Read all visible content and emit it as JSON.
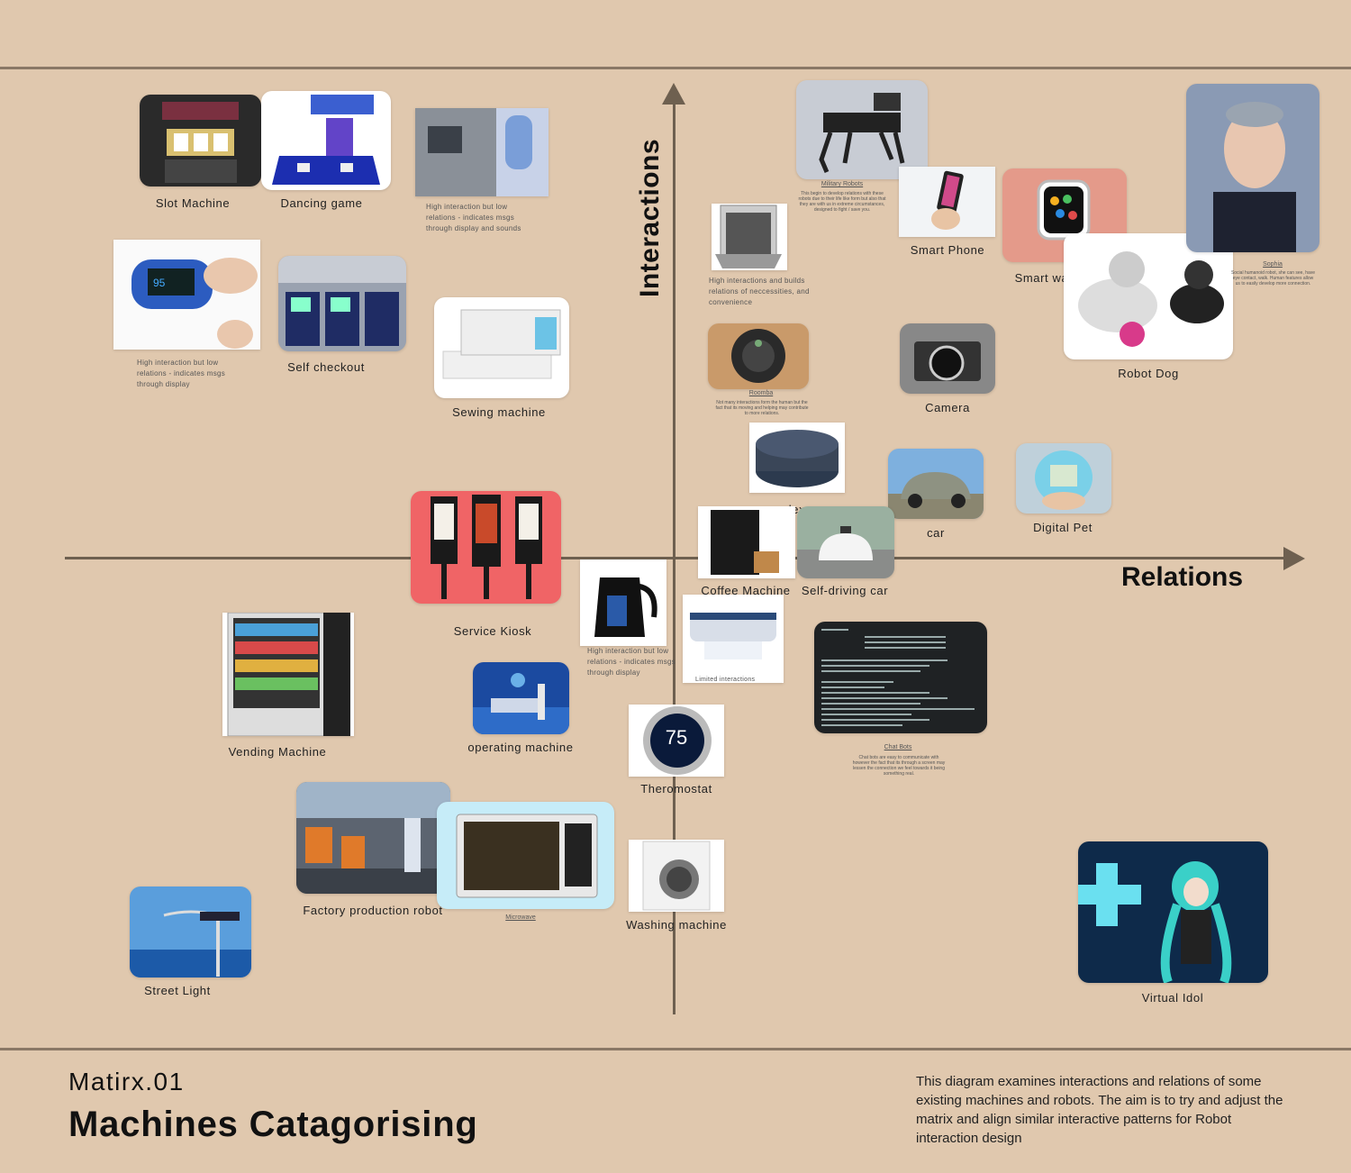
{
  "axes": {
    "y_label": "Interactions",
    "x_label": "Relations"
  },
  "items": {
    "slot_machine": "Slot Machine",
    "dancing_game": "Dancing game",
    "atm_note": "High interaction but low relations - indicates msgs through display and sounds",
    "oximeter_note": "High interaction but low relations - indicates msgs through display",
    "self_checkout": "Self checkout",
    "sewing_machine": "Sewing machine",
    "service_kiosk": "Service Kiosk",
    "vending_machine": "Vending Machine",
    "kettle_note": "High interaction but low relations - indicates msgs through display",
    "operating_machine": "operating machine",
    "factory_robot": "Factory production robot",
    "microwave": "Microwave",
    "street_light": "Street Light",
    "thermostat": "Theromostat",
    "thermostat_value": "75",
    "washing_machine": "Washing machine",
    "printer_note": "Limited interactions",
    "military_robots": "Military Robots",
    "military_note": "This begin to develop relations with these robots due to their life like form but also that they are with us in extreme circumstances, designed to fight / save you.",
    "dishwasher_note": "High interactions and builds relations of neccessities, and convenience",
    "smart_phone": "Smart Phone",
    "smart_watch": "Smart watch",
    "sophia": "Sophia",
    "sophia_note": "Social humanoid robot, she can see, have eye contact, walk. Human features allow us to easily develop more connection.",
    "robot_dog": "Robot Dog",
    "roomba": "Roomba",
    "roomba_note": "Not many interactions form the human but the fact that its moving and helping may contribute to more relations.",
    "camera": "Camera",
    "alexa": "alexa",
    "car": "car",
    "digital_pet": "Digital Pet",
    "coffee_machine": "Coffee Machine",
    "self_driving_car": "Self-driving car",
    "chat_bots": "Chat Bots",
    "chat_bots_note": "Chat bots are easy to communicate with however the fact that its through a screen may lessen the connection we feel towards it being something real.",
    "virtual_idol": "Virtual Idol"
  },
  "footer": {
    "subtitle": "Matirx.01",
    "title": "Machines Catagorising",
    "description": "This diagram examines interactions and relations of some  existing machines and robots. The aim is to try and adjust the matrix and align similar interactive patterns for Robot interaction design"
  }
}
